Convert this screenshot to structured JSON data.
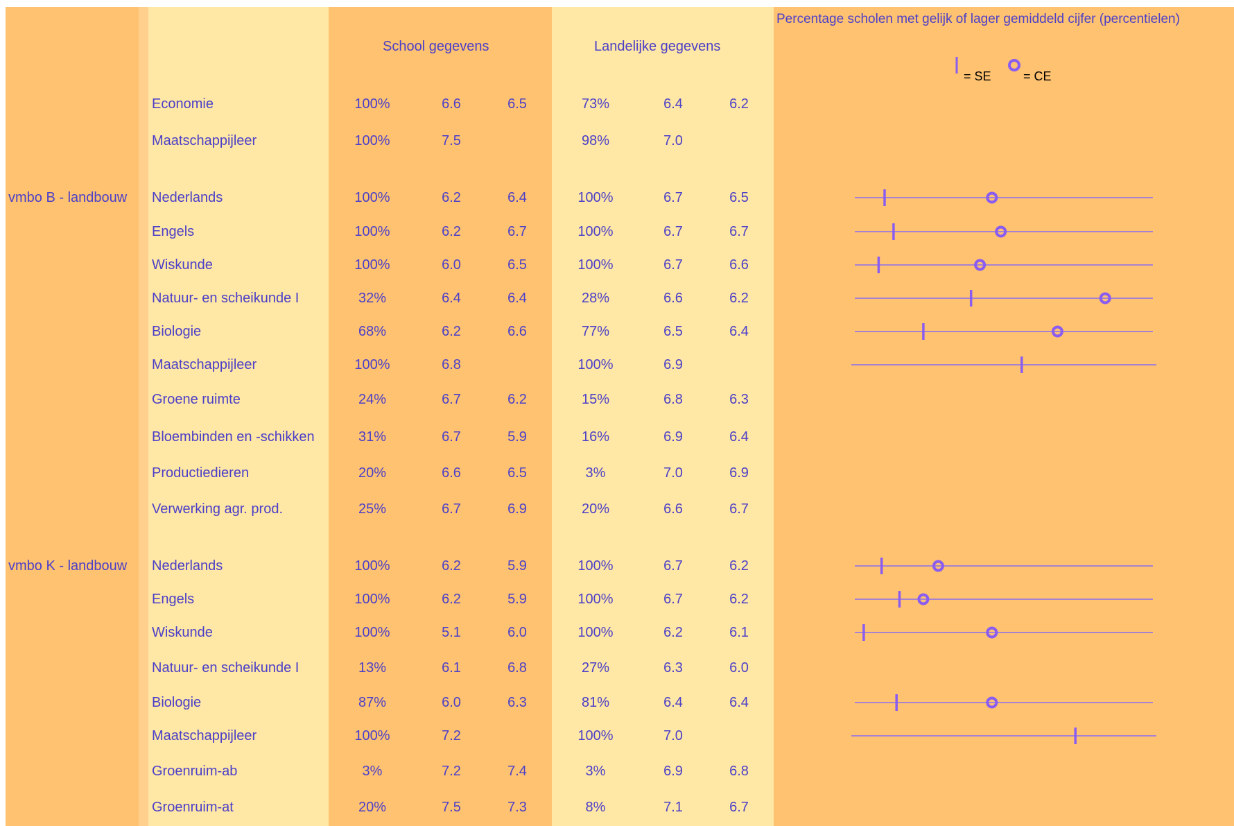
{
  "headers": {
    "school": "School gegevens",
    "national": "Landelijke gegevens",
    "chart_title": "Percentage scholen met gelijk of lager gemiddeld cijfer (percentielen)",
    "legend_se": "= SE",
    "legend_ce": "= CE"
  },
  "colors": {
    "accent": "#4B3FC8",
    "marker": "#8A5CF0",
    "line": "#8A6CF0",
    "orange": "#FFC271",
    "cream": "#FFE7A5"
  },
  "icons": {
    "se_marker": "vertical-tick",
    "ce_marker": "ring"
  },
  "rows": [
    {
      "group": "",
      "subject": "Economie",
      "school_pct": "100%",
      "school_se": "6.6",
      "school_ce": "6.5",
      "land_pct": "73%",
      "land_se": "6.4",
      "land_ce": "6.2"
    },
    {
      "group": "",
      "subject": "Maatschappijleer",
      "school_pct": "100%",
      "school_se": "7.5",
      "school_ce": "",
      "land_pct": "98%",
      "land_se": "7.0",
      "land_ce": ""
    },
    {
      "group": "vmbo B - landbouw",
      "subject": "Nederlands",
      "school_pct": "100%",
      "school_se": "6.2",
      "school_ce": "6.4",
      "land_pct": "100%",
      "land_se": "6.7",
      "land_ce": "6.5"
    },
    {
      "group": "",
      "subject": "Engels",
      "school_pct": "100%",
      "school_se": "6.2",
      "school_ce": "6.7",
      "land_pct": "100%",
      "land_se": "6.7",
      "land_ce": "6.7"
    },
    {
      "group": "",
      "subject": "Wiskunde",
      "school_pct": "100%",
      "school_se": "6.0",
      "school_ce": "6.5",
      "land_pct": "100%",
      "land_se": "6.7",
      "land_ce": "6.6"
    },
    {
      "group": "",
      "subject": "Natuur- en scheikunde I",
      "school_pct": "32%",
      "school_se": "6.4",
      "school_ce": "6.4",
      "land_pct": "28%",
      "land_se": "6.6",
      "land_ce": "6.2"
    },
    {
      "group": "",
      "subject": "Biologie",
      "school_pct": "68%",
      "school_se": "6.2",
      "school_ce": "6.6",
      "land_pct": "77%",
      "land_se": "6.5",
      "land_ce": "6.4"
    },
    {
      "group": "",
      "subject": "Maatschappijleer",
      "school_pct": "100%",
      "school_se": "6.8",
      "school_ce": "",
      "land_pct": "100%",
      "land_se": "6.9",
      "land_ce": ""
    },
    {
      "group": "",
      "subject": "Groene ruimte",
      "school_pct": "24%",
      "school_se": "6.7",
      "school_ce": "6.2",
      "land_pct": "15%",
      "land_se": "6.8",
      "land_ce": "6.3"
    },
    {
      "group": "",
      "subject": "Bloembinden en -schikken",
      "school_pct": "31%",
      "school_se": "6.7",
      "school_ce": "5.9",
      "land_pct": "16%",
      "land_se": "6.9",
      "land_ce": "6.4"
    },
    {
      "group": "",
      "subject": "Productiedieren",
      "school_pct": "20%",
      "school_se": "6.6",
      "school_ce": "6.5",
      "land_pct": "3%",
      "land_se": "7.0",
      "land_ce": "6.9"
    },
    {
      "group": "",
      "subject": "Verwerking agr. prod.",
      "school_pct": "25%",
      "school_se": "6.7",
      "school_ce": "6.9",
      "land_pct": "20%",
      "land_se": "6.6",
      "land_ce": "6.7"
    },
    {
      "group": "vmbo K - landbouw",
      "subject": "Nederlands",
      "school_pct": "100%",
      "school_se": "6.2",
      "school_ce": "5.9",
      "land_pct": "100%",
      "land_se": "6.7",
      "land_ce": "6.2"
    },
    {
      "group": "",
      "subject": "Engels",
      "school_pct": "100%",
      "school_se": "6.2",
      "school_ce": "5.9",
      "land_pct": "100%",
      "land_se": "6.7",
      "land_ce": "6.2"
    },
    {
      "group": "",
      "subject": "Wiskunde",
      "school_pct": "100%",
      "school_se": "5.1",
      "school_ce": "6.0",
      "land_pct": "100%",
      "land_se": "6.2",
      "land_ce": "6.1"
    },
    {
      "group": "",
      "subject": "Natuur- en scheikunde I",
      "school_pct": "13%",
      "school_se": "6.1",
      "school_ce": "6.8",
      "land_pct": "27%",
      "land_se": "6.3",
      "land_ce": "6.0"
    },
    {
      "group": "",
      "subject": "Biologie",
      "school_pct": "87%",
      "school_se": "6.0",
      "school_ce": "6.3",
      "land_pct": "81%",
      "land_se": "6.4",
      "land_ce": "6.4"
    },
    {
      "group": "",
      "subject": "Maatschappijleer",
      "school_pct": "100%",
      "school_se": "7.2",
      "school_ce": "",
      "land_pct": "100%",
      "land_se": "7.0",
      "land_ce": ""
    },
    {
      "group": "",
      "subject": "Groenruim-ab",
      "school_pct": "3%",
      "school_se": "7.2",
      "school_ce": "7.4",
      "land_pct": "3%",
      "land_se": "6.9",
      "land_ce": "6.8"
    },
    {
      "group": "",
      "subject": "Groenruim-at",
      "school_pct": "20%",
      "school_se": "7.5",
      "school_ce": "7.3",
      "land_pct": "8%",
      "land_se": "7.1",
      "land_ce": "6.7"
    }
  ],
  "chart_data": {
    "type": "scatter",
    "title": "Percentage scholen met gelijk of lager gemiddeld cijfer (percentielen)",
    "xlim": [
      0,
      100
    ],
    "series_names": [
      "SE",
      "CE"
    ],
    "points": [
      {
        "row": 2,
        "se": 10,
        "ce": 46
      },
      {
        "row": 3,
        "se": 13,
        "ce": 49
      },
      {
        "row": 4,
        "se": 8,
        "ce": 42
      },
      {
        "row": 5,
        "se": 39,
        "ce": 84
      },
      {
        "row": 6,
        "se": 23,
        "ce": 68
      },
      {
        "row": 7,
        "se": 56,
        "ce": null
      },
      {
        "row": 12,
        "se": 9,
        "ce": 28
      },
      {
        "row": 13,
        "se": 15,
        "ce": 23
      },
      {
        "row": 14,
        "se": 3,
        "ce": 46
      },
      {
        "row": 16,
        "se": 14,
        "ce": 46
      },
      {
        "row": 17,
        "se": 74,
        "ce": null
      }
    ]
  }
}
